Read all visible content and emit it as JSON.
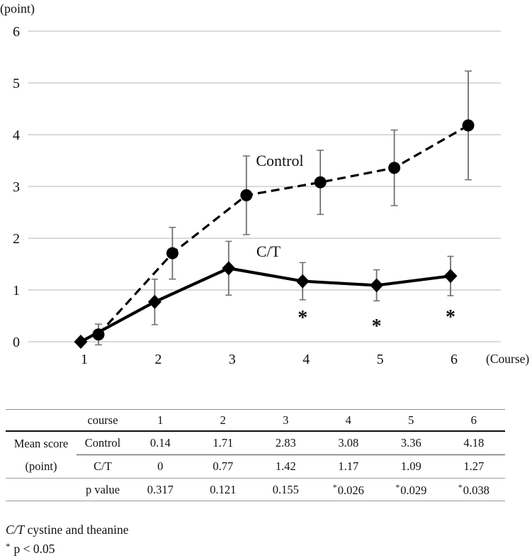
{
  "chart_data": {
    "type": "line",
    "title": "",
    "xlabel": "(Course)",
    "ylabel": "(point)",
    "x": [
      1,
      2,
      3,
      4,
      5,
      6
    ],
    "yticks": [
      0,
      1,
      2,
      3,
      4,
      5,
      6
    ],
    "ylim": [
      0,
      6
    ],
    "grid": true,
    "legend_position": "inline-labels",
    "series": [
      {
        "name": "Control",
        "line_style": "dashed",
        "marker": "circle",
        "values": [
          0.14,
          1.71,
          2.83,
          3.08,
          3.36,
          4.18
        ],
        "err": [
          0.2,
          0.5,
          0.76,
          0.62,
          0.73,
          1.05
        ]
      },
      {
        "name": "C/T",
        "line_style": "solid",
        "marker": "diamond",
        "values": [
          0,
          0.77,
          1.42,
          1.17,
          1.09,
          1.27
        ],
        "err": [
          0,
          0.44,
          0.52,
          0.36,
          0.3,
          0.38
        ]
      }
    ],
    "annotations": [
      {
        "text": "*",
        "course": 4,
        "y": 0.51
      },
      {
        "text": "*",
        "course": 5,
        "y": 0.34
      },
      {
        "text": "*",
        "course": 6,
        "y": 0.52
      }
    ]
  },
  "table": {
    "header": {
      "row_label": "course",
      "cols": [
        "1",
        "2",
        "3",
        "4",
        "5",
        "6"
      ]
    },
    "group_label_line1": "Mean score",
    "group_label_line2": "(point)",
    "rows": [
      {
        "label": "Control",
        "values": [
          "0.14",
          "1.71",
          "2.83",
          "3.08",
          "3.36",
          "4.18"
        ]
      },
      {
        "label": "C/T",
        "values": [
          "0",
          "0.77",
          "1.42",
          "1.17",
          "1.09",
          "1.27"
        ]
      },
      {
        "label": "p value",
        "values": [
          "0.317",
          "0.121",
          "0.155",
          "*0.026",
          "*0.029",
          "*0.038"
        ]
      }
    ]
  },
  "footnotes": {
    "abbrev_term": "C/T",
    "abbrev_definition": "cystine and theanine",
    "sig_symbol": "*",
    "sig_text": "p < 0.05"
  },
  "colors": {
    "line": "#000000",
    "error_bar": "#6f6f6f",
    "gridline": "#c4c4c4",
    "text": "#111111"
  }
}
